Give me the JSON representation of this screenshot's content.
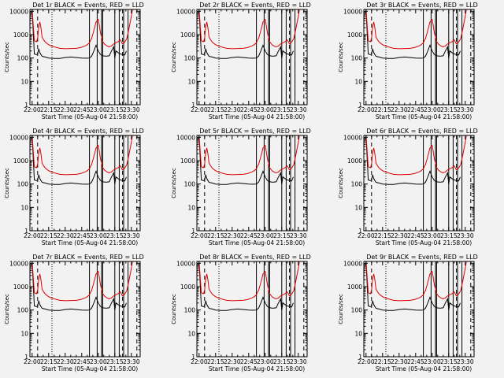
{
  "figure": {
    "background": "#f2f2f2",
    "foreground": "#000000",
    "series_colors": {
      "events": "#000000",
      "lld": "#e00000"
    }
  },
  "chart_data": [
    {
      "title": "Det 1r  BLACK = Events, RED = LLD"
    },
    {
      "title": "Det 2r  BLACK = Events, RED = LLD"
    },
    {
      "title": "Det 3r  BLACK = Events, RED = LLD"
    },
    {
      "title": "Det 4r  BLACK = Events, RED = LLD"
    },
    {
      "title": "Det 5r  BLACK = Events, RED = LLD"
    },
    {
      "title": "Det 6r  BLACK = Events, RED = LLD"
    },
    {
      "title": "Det 7r  BLACK = Events, RED = LLD"
    },
    {
      "title": "Det 8r  BLACK = Events, RED = LLD"
    },
    {
      "title": "Det 9r  BLACK = Events, RED = LLD"
    }
  ],
  "shared": {
    "type": "line",
    "xlabel": "Start Time (05-Aug-04 21:58:00)",
    "ylabel": "Counts/sec",
    "x_tick_labels": [
      "22:00",
      "22:15",
      "22:30",
      "22:45",
      "23:00",
      "23:15",
      "23:30"
    ],
    "x_tick_minutes": [
      0,
      15,
      30,
      45,
      60,
      75,
      90
    ],
    "xlim_minutes": [
      -2,
      98
    ],
    "y_tick_labels": [
      "1",
      "10",
      "100",
      "1000",
      "10000"
    ],
    "y_tick_values": [
      1,
      10,
      100,
      1000,
      10000
    ],
    "ylim": [
      1,
      12000
    ],
    "y_scale": "log",
    "series": [
      {
        "key": "events",
        "x": [
          -2,
          0,
          2,
          4,
          5,
          6,
          7,
          8,
          9,
          10,
          12,
          15,
          20,
          25,
          30,
          35,
          40,
          45,
          48,
          50,
          52,
          54,
          56,
          58,
          60,
          62,
          64,
          66,
          68,
          70,
          72,
          74,
          75,
          76,
          78,
          80,
          82,
          84,
          85.5
        ],
        "y": [
          12000,
          12000,
          150,
          140,
          150,
          250,
          170,
          140,
          120,
          115,
          110,
          100,
          95,
          95,
          105,
          110,
          105,
          100,
          98,
          98,
          100,
          120,
          200,
          350,
          200,
          140,
          125,
          120,
          120,
          125,
          200,
          300,
          100,
          200,
          170,
          150,
          140,
          135,
          200
        ]
      },
      {
        "key": "lld",
        "x": [
          -2,
          0,
          2,
          4,
          5,
          6,
          7,
          8,
          9,
          10,
          11,
          12,
          14,
          16,
          20,
          25,
          30,
          35,
          40,
          44,
          48,
          50,
          52,
          54,
          56,
          58,
          60,
          62,
          64,
          66,
          68,
          70,
          72,
          74,
          76,
          78,
          80,
          82,
          84,
          86,
          88,
          90,
          91
        ],
        "y": [
          12000,
          12000,
          550,
          500,
          700,
          2200,
          3500,
          2000,
          800,
          650,
          550,
          480,
          400,
          350,
          300,
          260,
          250,
          255,
          260,
          280,
          330,
          370,
          450,
          700,
          1500,
          3500,
          4500,
          1200,
          500,
          380,
          330,
          300,
          330,
          400,
          450,
          500,
          600,
          400,
          480,
          700,
          2000,
          6000,
          12000
        ]
      }
    ],
    "solid_markers_minutes": [
      52,
      59,
      63,
      64,
      75,
      79,
      83,
      87
    ],
    "dotted_markers_minutes": [
      18
    ],
    "dashed_markers_minutes": [
      5,
      82,
      95
    ]
  }
}
